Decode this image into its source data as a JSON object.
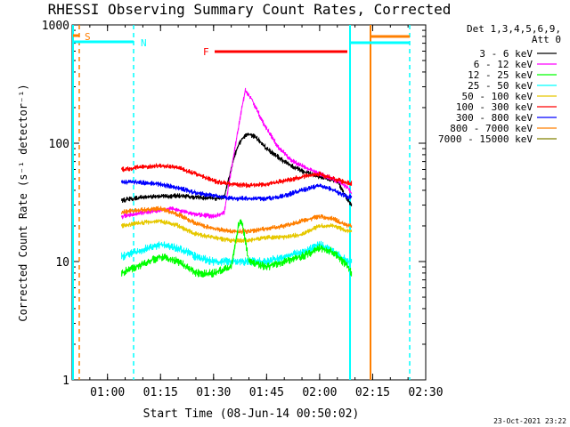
{
  "chart_data": {
    "type": "line",
    "title": "RHESSI Observing Summary Count Rates, Corrected",
    "xlabel": "Start Time (08-Jun-14 00:50:02)",
    "ylabel": "Corrected Count Rate (s⁻¹ detector⁻¹)",
    "yscale": "log",
    "ylim": [
      1,
      1000
    ],
    "xlim": [
      "00:50",
      "02:30"
    ],
    "x_ticks": [
      "01:00",
      "01:15",
      "01:30",
      "01:45",
      "02:00",
      "02:15",
      "02:30"
    ],
    "y_ticks": [
      "1",
      "10",
      "100",
      "1000"
    ],
    "legend_title": [
      "Det 1,3,4,5,6,9,",
      "Att 0"
    ],
    "legend_placement": "right, outside plot",
    "footer_date": "23-Oct-2021 23:22",
    "markers": [
      {
        "label": "S",
        "color": "#ff7f00",
        "type": "SAA"
      },
      {
        "label": "N",
        "color": "#00ffff",
        "type": "Night"
      },
      {
        "label": "F",
        "color": "#ff0000",
        "type": "Flare"
      }
    ],
    "series": [
      {
        "name": "3 - 6 keV",
        "color": "#000000",
        "points": [
          [
            "01:04",
            33
          ],
          [
            "01:10",
            35
          ],
          [
            "01:20",
            36
          ],
          [
            "01:30",
            34
          ],
          [
            "01:33",
            35
          ],
          [
            "01:36",
            80
          ],
          [
            "01:38",
            110
          ],
          [
            "01:40",
            120
          ],
          [
            "01:42",
            112
          ],
          [
            "01:45",
            90
          ],
          [
            "01:50",
            70
          ],
          [
            "01:55",
            58
          ],
          [
            "02:00",
            52
          ],
          [
            "02:05",
            48
          ],
          [
            "02:08",
            33
          ],
          [
            "02:09",
            30
          ]
        ]
      },
      {
        "name": "6 - 12 keV",
        "color": "#ff00ff",
        "points": [
          [
            "01:04",
            24
          ],
          [
            "01:10",
            26
          ],
          [
            "01:18",
            28
          ],
          [
            "01:25",
            25
          ],
          [
            "01:30",
            24
          ],
          [
            "01:33",
            26
          ],
          [
            "01:36",
            90
          ],
          [
            "01:38",
            200
          ],
          [
            "01:39",
            280
          ],
          [
            "01:41",
            230
          ],
          [
            "01:44",
            150
          ],
          [
            "01:48",
            95
          ],
          [
            "01:52",
            72
          ],
          [
            "01:57",
            60
          ],
          [
            "02:02",
            52
          ],
          [
            "02:05",
            48
          ],
          [
            "02:08",
            42
          ],
          [
            "02:09",
            38
          ]
        ]
      },
      {
        "name": "12 - 25 keV",
        "color": "#00ff00",
        "points": [
          [
            "01:04",
            8
          ],
          [
            "01:08",
            9
          ],
          [
            "01:15",
            11
          ],
          [
            "01:20",
            10
          ],
          [
            "01:25",
            8
          ],
          [
            "01:30",
            8
          ],
          [
            "01:35",
            9
          ],
          [
            "01:37",
            20
          ],
          [
            "01:38",
            22
          ],
          [
            "01:40",
            10
          ],
          [
            "01:45",
            9
          ],
          [
            "01:50",
            10
          ],
          [
            "01:55",
            11
          ],
          [
            "02:00",
            13
          ],
          [
            "02:04",
            12
          ],
          [
            "02:08",
            9
          ],
          [
            "02:09",
            8
          ]
        ]
      },
      {
        "name": "25 - 50 keV",
        "color": "#00ffff",
        "points": [
          [
            "01:04",
            11
          ],
          [
            "01:08",
            12
          ],
          [
            "01:15",
            14
          ],
          [
            "01:20",
            13
          ],
          [
            "01:25",
            11
          ],
          [
            "01:30",
            10
          ],
          [
            "01:35",
            10
          ],
          [
            "01:40",
            10
          ],
          [
            "01:45",
            10
          ],
          [
            "01:50",
            11
          ],
          [
            "01:55",
            12
          ],
          [
            "02:00",
            14
          ],
          [
            "02:04",
            12
          ],
          [
            "02:08",
            10
          ],
          [
            "02:09",
            10
          ]
        ]
      },
      {
        "name": "50 - 100 keV",
        "color": "#e6c800",
        "points": [
          [
            "01:04",
            20
          ],
          [
            "01:08",
            21
          ],
          [
            "01:15",
            22
          ],
          [
            "01:20",
            20
          ],
          [
            "01:25",
            17
          ],
          [
            "01:30",
            16
          ],
          [
            "01:35",
            15
          ],
          [
            "01:40",
            15
          ],
          [
            "01:45",
            16
          ],
          [
            "01:50",
            16
          ],
          [
            "01:55",
            17
          ],
          [
            "02:00",
            20
          ],
          [
            "02:04",
            20
          ],
          [
            "02:08",
            18
          ],
          [
            "02:09",
            18
          ]
        ]
      },
      {
        "name": "100 - 300 keV",
        "color": "#ff0000",
        "points": [
          [
            "01:04",
            60
          ],
          [
            "01:08",
            62
          ],
          [
            "01:15",
            65
          ],
          [
            "01:20",
            62
          ],
          [
            "01:25",
            55
          ],
          [
            "01:30",
            48
          ],
          [
            "01:35",
            45
          ],
          [
            "01:40",
            44
          ],
          [
            "01:45",
            45
          ],
          [
            "01:50",
            48
          ],
          [
            "01:55",
            52
          ],
          [
            "02:00",
            55
          ],
          [
            "02:04",
            50
          ],
          [
            "02:08",
            46
          ],
          [
            "02:09",
            46
          ]
        ]
      },
      {
        "name": "300 - 800 keV",
        "color": "#0000ff",
        "points": [
          [
            "01:04",
            47
          ],
          [
            "01:08",
            47
          ],
          [
            "01:15",
            45
          ],
          [
            "01:20",
            42
          ],
          [
            "01:25",
            38
          ],
          [
            "01:30",
            36
          ],
          [
            "01:35",
            34
          ],
          [
            "01:40",
            34
          ],
          [
            "01:45",
            34
          ],
          [
            "01:50",
            36
          ],
          [
            "01:55",
            40
          ],
          [
            "02:00",
            44
          ],
          [
            "02:04",
            40
          ],
          [
            "02:08",
            35
          ],
          [
            "02:09",
            35
          ]
        ]
      },
      {
        "name": "800 - 7000 keV",
        "color": "#ff7f00",
        "points": [
          [
            "01:04",
            26
          ],
          [
            "01:08",
            27
          ],
          [
            "01:15",
            28
          ],
          [
            "01:20",
            25
          ],
          [
            "01:25",
            21
          ],
          [
            "01:30",
            19
          ],
          [
            "01:35",
            18
          ],
          [
            "01:40",
            18
          ],
          [
            "01:45",
            19
          ],
          [
            "01:50",
            20
          ],
          [
            "01:55",
            22
          ],
          [
            "02:00",
            24
          ],
          [
            "02:04",
            23
          ],
          [
            "02:08",
            20
          ],
          [
            "02:09",
            20
          ]
        ]
      },
      {
        "name": "7000 - 15000 keV",
        "color": "#808000",
        "points": []
      }
    ]
  }
}
